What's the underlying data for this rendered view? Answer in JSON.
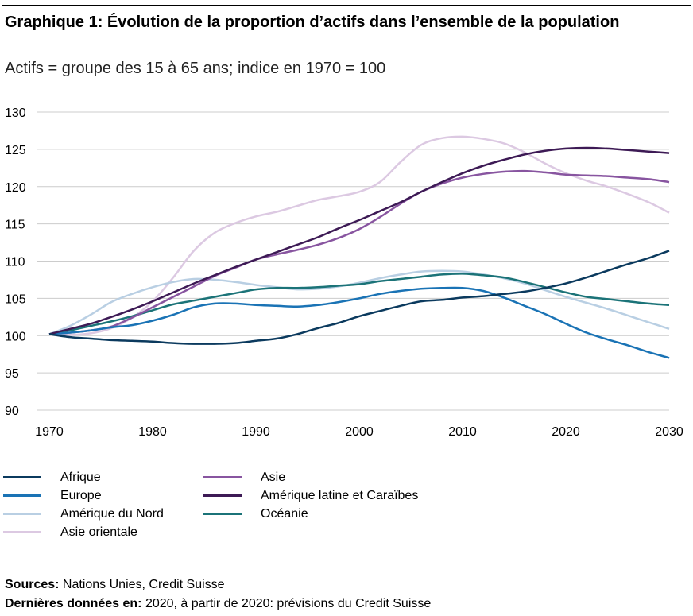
{
  "title": "Graphique 1: Évolution de la proportion d’actifs dans l’ensemble de la population",
  "subtitle": "Actifs = groupe des 15 à 65 ans; indice en 1970 = 100",
  "footer": {
    "sources_label": "Sources:",
    "sources_text": " Nations Unies, Credit Suisse",
    "latest_label": "Dernières données en:",
    "latest_text": " 2020, à partir de 2020: prévisions du Credit Suisse"
  },
  "chart_data": {
    "type": "line",
    "title": "Graphique 1: Évolution de la proportion d’actifs dans l’ensemble de la population",
    "subtitle": "Actifs = groupe des 15 à 65 ans; indice en 1970 = 100",
    "xlabel": "",
    "ylabel": "",
    "xlim": [
      1970,
      2030
    ],
    "ylim": [
      90,
      130
    ],
    "xticks": [
      1970,
      1980,
      1990,
      2000,
      2010,
      2020,
      2030
    ],
    "yticks": [
      90,
      95,
      100,
      105,
      110,
      115,
      120,
      125,
      130
    ],
    "grid": "horizontal",
    "legend_position": "bottom",
    "x": [
      1970,
      1972,
      1974,
      1976,
      1978,
      1980,
      1982,
      1984,
      1986,
      1988,
      1990,
      1992,
      1994,
      1996,
      1998,
      2000,
      2002,
      2004,
      2006,
      2008,
      2010,
      2012,
      2014,
      2016,
      2018,
      2020,
      2022,
      2024,
      2026,
      2028,
      2030
    ],
    "series": [
      {
        "name": "Afrique",
        "color": "#0b3a5e",
        "values": [
          100.2,
          99.8,
          99.6,
          99.4,
          99.3,
          99.2,
          99.0,
          98.9,
          98.9,
          99.0,
          99.3,
          99.6,
          100.2,
          101.0,
          101.7,
          102.6,
          103.3,
          104.0,
          104.6,
          104.8,
          105.1,
          105.3,
          105.6,
          105.9,
          106.4,
          107.0,
          107.8,
          108.7,
          109.6,
          110.4,
          111.4
        ]
      },
      {
        "name": "Europe",
        "color": "#1a73b5",
        "values": [
          100.2,
          100.4,
          100.7,
          101.1,
          101.4,
          102.0,
          102.8,
          103.8,
          104.3,
          104.3,
          104.1,
          104.0,
          103.9,
          104.1,
          104.5,
          105.0,
          105.6,
          106.0,
          106.3,
          106.4,
          106.4,
          106.0,
          105.1,
          104.0,
          102.9,
          101.6,
          100.4,
          99.5,
          98.7,
          97.8,
          97.0
        ]
      },
      {
        "name": "Amérique du Nord",
        "color": "#b9cfe3",
        "values": [
          100.2,
          101.3,
          102.8,
          104.5,
          105.6,
          106.5,
          107.2,
          107.6,
          107.5,
          107.2,
          106.8,
          106.5,
          106.2,
          106.3,
          106.6,
          107.1,
          107.7,
          108.2,
          108.6,
          108.7,
          108.6,
          108.2,
          107.7,
          107.0,
          106.1,
          105.2,
          104.4,
          103.6,
          102.7,
          101.8,
          100.9
        ]
      },
      {
        "name": "Asie orientale",
        "color": "#dcc9e2",
        "values": [
          100.2,
          100.1,
          100.3,
          101.0,
          102.4,
          104.6,
          107.8,
          111.4,
          113.8,
          115.1,
          116.0,
          116.6,
          117.4,
          118.2,
          118.7,
          119.3,
          120.6,
          123.3,
          125.6,
          126.5,
          126.7,
          126.4,
          125.8,
          124.6,
          123.1,
          121.8,
          120.8,
          120.0,
          119.0,
          117.9,
          116.5
        ]
      },
      {
        "name": "Asie",
        "color": "#8855a0",
        "values": [
          100.2,
          100.4,
          100.7,
          101.2,
          102.4,
          103.8,
          105.2,
          106.6,
          108.0,
          109.1,
          110.2,
          110.9,
          111.5,
          112.2,
          113.1,
          114.3,
          115.9,
          117.7,
          119.3,
          120.4,
          121.2,
          121.7,
          122.0,
          122.1,
          121.9,
          121.6,
          121.5,
          121.4,
          121.2,
          121.0,
          120.6
        ]
      },
      {
        "name": "Amérique latine et Caraïbes",
        "color": "#3d1a55",
        "values": [
          100.2,
          100.9,
          101.6,
          102.5,
          103.5,
          104.6,
          105.8,
          107.0,
          108.1,
          109.2,
          110.2,
          111.2,
          112.2,
          113.2,
          114.4,
          115.5,
          116.7,
          117.9,
          119.3,
          120.6,
          121.8,
          122.8,
          123.6,
          124.3,
          124.8,
          125.1,
          125.2,
          125.1,
          124.9,
          124.7,
          124.5
        ]
      },
      {
        "name": "Océanie",
        "color": "#1b7378",
        "values": [
          100.2,
          100.7,
          101.3,
          101.9,
          102.6,
          103.4,
          104.2,
          104.7,
          105.2,
          105.7,
          106.2,
          106.4,
          106.4,
          106.5,
          106.7,
          106.9,
          107.3,
          107.6,
          107.9,
          108.2,
          108.3,
          108.1,
          107.8,
          107.2,
          106.5,
          105.8,
          105.2,
          104.9,
          104.6,
          104.3,
          104.1
        ]
      }
    ]
  }
}
